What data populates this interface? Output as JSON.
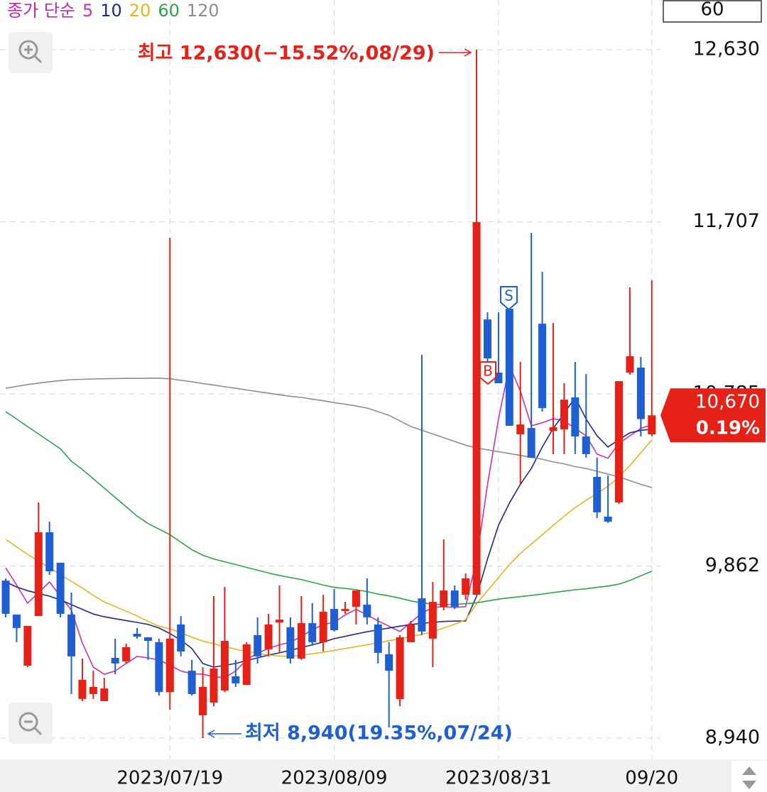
{
  "chart_data": {
    "type": "candlestick",
    "ma_label": "종가 단순",
    "visible_count": "60",
    "categories": [
      null,
      null,
      null,
      null,
      null,
      null,
      null,
      null,
      null,
      null,
      null,
      null,
      null,
      null,
      null,
      "2023/07/19",
      null,
      null,
      null,
      null,
      null,
      null,
      null,
      null,
      null,
      null,
      null,
      null,
      null,
      null,
      "2023/08/09",
      null,
      null,
      null,
      null,
      null,
      null,
      null,
      null,
      null,
      null,
      null,
      null,
      null,
      null,
      "2023/08/31",
      null,
      null,
      null,
      null,
      null,
      null,
      null,
      null,
      null,
      null,
      null,
      null,
      null,
      "09/20"
    ],
    "open": [
      9784,
      9602,
      9328,
      9594,
      10043,
      9880,
      9602,
      9150,
      9176,
      9138,
      9370,
      9351,
      9499,
      9480,
      9454,
      9187,
      9549,
      9301,
      9062,
      9130,
      9195,
      9271,
      9225,
      9492,
      9416,
      9560,
      9534,
      9366,
      9556,
      9454,
      9632,
      9621,
      9644,
      9655,
      9549,
      9389,
      9149,
      9454,
      9689,
      9473,
      9644,
      9731,
      9708,
      9708,
      11184,
      10899,
      11241,
      10568,
      10602,
      11161,
      10587,
      10595,
      10766,
      10557,
      10340,
      10127,
      10203,
      10899,
      10926,
      10568
    ],
    "high": [
      9795,
      9602,
      9541,
      10203,
      10100,
      9880,
      9720,
      9366,
      9301,
      9263,
      9473,
      9446,
      9530,
      9480,
      9473,
      11622,
      9594,
      9359,
      9320,
      9701,
      9750,
      9359,
      9454,
      9587,
      9606,
      9758,
      9587,
      9701,
      9663,
      9708,
      9739,
      9670,
      9731,
      9796,
      9587,
      9454,
      9492,
      9568,
      10994,
      9777,
      10005,
      9758,
      9822,
      12630,
      11222,
      11222,
      11279,
      10956,
      11648,
      11439,
      11165,
      10842,
      10956,
      10891,
      10443,
      10348,
      10853,
      11356,
      10983,
      11394
    ],
    "low": [
      9587,
      9454,
      9320,
      9594,
      9815,
      9587,
      9176,
      9138,
      9150,
      9138,
      9282,
      9340,
      9473,
      9359,
      9168,
      9092,
      9378,
      9168,
      8940,
      9111,
      9187,
      9214,
      9225,
      9340,
      9378,
      9397,
      9340,
      9359,
      9435,
      9404,
      9511,
      9606,
      9549,
      9549,
      9340,
      8997,
      9111,
      9454,
      9492,
      9320,
      9625,
      9632,
      9682,
      9708,
      10842,
      10842,
      10614,
      10298,
      10443,
      10690,
      10462,
      10462,
      10462,
      10443,
      10119,
      10093,
      10195,
      10888,
      10557,
      10557
    ],
    "close": [
      9606,
      9530,
      9541,
      10043,
      9834,
      9606,
      9378,
      9252,
      9214,
      9206,
      9340,
      9427,
      9484,
      9461,
      9187,
      9473,
      9404,
      9176,
      9214,
      9313,
      9461,
      9233,
      9442,
      9378,
      9549,
      9575,
      9366,
      9556,
      9454,
      9617,
      9518,
      9632,
      9731,
      9587,
      9397,
      9301,
      9480,
      9549,
      9511,
      9670,
      9731,
      9644,
      9796,
      11706,
      10975,
      10842,
      10614,
      10621,
      10443,
      10709,
      10606,
      10754,
      10557,
      10462,
      10150,
      10100,
      10853,
      10987,
      10650,
      10670
    ],
    "up_color": "#e62117",
    "down_color": "#1e5fd3",
    "moving_averages": [
      {
        "name": "5",
        "color": "#d02fb3",
        "values": [
          9853,
          9760,
          9663,
          9720,
          9777,
          9700,
          9625,
          9450,
          9320,
          9282,
          9300,
          9340,
          9378,
          9370,
          9359,
          9330,
          9300,
          9285,
          9282,
          9270,
          9263,
          9300,
          9360,
          9395,
          9420,
          9440,
          9454,
          9485,
          9520,
          9549,
          9560,
          9600,
          9630,
          9600,
          9568,
          9540,
          9511,
          9560,
          9610,
          9640,
          9644,
          9640,
          9644,
          9900,
          10300,
          10650,
          10937,
          10800,
          10614,
          10630,
          10652,
          10640,
          10600,
          10560,
          10462,
          10440,
          10520,
          10560,
          10600,
          10620
        ]
      },
      {
        "name": "10",
        "color": "#1c2a8c",
        "values": [
          9777,
          9750,
          9730,
          9715,
          9701,
          9680,
          9655,
          9630,
          9605,
          9590,
          9580,
          9570,
          9560,
          9549,
          9530,
          9500,
          9465,
          9420,
          9340,
          9320,
          9330,
          9340,
          9355,
          9370,
          9385,
          9397,
          9410,
          9425,
          9440,
          9455,
          9473,
          9485,
          9498,
          9510,
          9520,
          9530,
          9540,
          9549,
          9555,
          9560,
          9565,
          9567,
          9568,
          9700,
          9900,
          10081,
          10200,
          10300,
          10386,
          10500,
          10600,
          10680,
          10766,
          10650,
          10560,
          10500,
          10540,
          10576,
          10590,
          10595
        ]
      },
      {
        "name": "20",
        "color": "#e8b41e",
        "values": [
          10005,
          9965,
          9925,
          9890,
          9853,
          9815,
          9780,
          9745,
          9705,
          9670,
          9645,
          9620,
          9595,
          9565,
          9540,
          9525,
          9505,
          9480,
          9460,
          9445,
          9430,
          9416,
          9405,
          9395,
          9385,
          9380,
          9378,
          9385,
          9392,
          9400,
          9410,
          9420,
          9430,
          9440,
          9450,
          9462,
          9472,
          9485,
          9495,
          9510,
          9530,
          9550,
          9575,
          9660,
          9730,
          9800,
          9870,
          9930,
          9980,
          10030,
          10080,
          10130,
          10175,
          10215,
          10250,
          10290,
          10340,
          10400,
          10470,
          10538
        ]
      },
      {
        "name": "60",
        "color": "#2ba44a",
        "values": [
          10690,
          10650,
          10610,
          10570,
          10530,
          10490,
          10424,
          10380,
          10330,
          10280,
          10230,
          10180,
          10130,
          10090,
          10060,
          10030,
          9990,
          9950,
          9920,
          9900,
          9885,
          9870,
          9855,
          9840,
          9825,
          9812,
          9800,
          9790,
          9775,
          9760,
          9748,
          9742,
          9735,
          9725,
          9712,
          9702,
          9690,
          9675,
          9665,
          9658,
          9655,
          9657,
          9660,
          9665,
          9675,
          9685,
          9692,
          9698,
          9705,
          9712,
          9720,
          9728,
          9735,
          9740,
          9748,
          9755,
          9765,
          9785,
          9810,
          9834
        ]
      },
      {
        "name": "120",
        "color": "#8e8e8e",
        "values": [
          10815,
          10825,
          10835,
          10843,
          10850,
          10856,
          10861,
          10863,
          10865,
          10866,
          10867,
          10868,
          10868,
          10869,
          10869,
          10866,
          10858,
          10850,
          10840,
          10832,
          10823,
          10815,
          10806,
          10797,
          10789,
          10780,
          10772,
          10766,
          10757,
          10748,
          10738,
          10730,
          10720,
          10709,
          10690,
          10670,
          10640,
          10610,
          10590,
          10570,
          10550,
          10530,
          10510,
          10495,
          10485,
          10475,
          10465,
          10455,
          10445,
          10435,
          10420,
          10410,
          10395,
          10385,
          10370,
          10355,
          10340,
          10320,
          10300,
          10283
        ]
      }
    ],
    "ylim": [
      8940,
      12630
    ],
    "yticks": [
      {
        "value": 8940,
        "label": "8,940"
      },
      {
        "value": 9862,
        "label": "9,862"
      },
      {
        "value": 10785,
        "label": "10,785"
      },
      {
        "value": 11707,
        "label": "11,707"
      },
      {
        "value": 12630,
        "label": "12,630"
      }
    ],
    "grid": true,
    "high_annotation": "최고 12,630(−15.52%,08/29)",
    "low_annotation": "최저 8,940(19.35%,07/24)",
    "last_price_label": "10,670",
    "last_change_label": "0.19%",
    "signals": [
      "B",
      "S"
    ]
  }
}
